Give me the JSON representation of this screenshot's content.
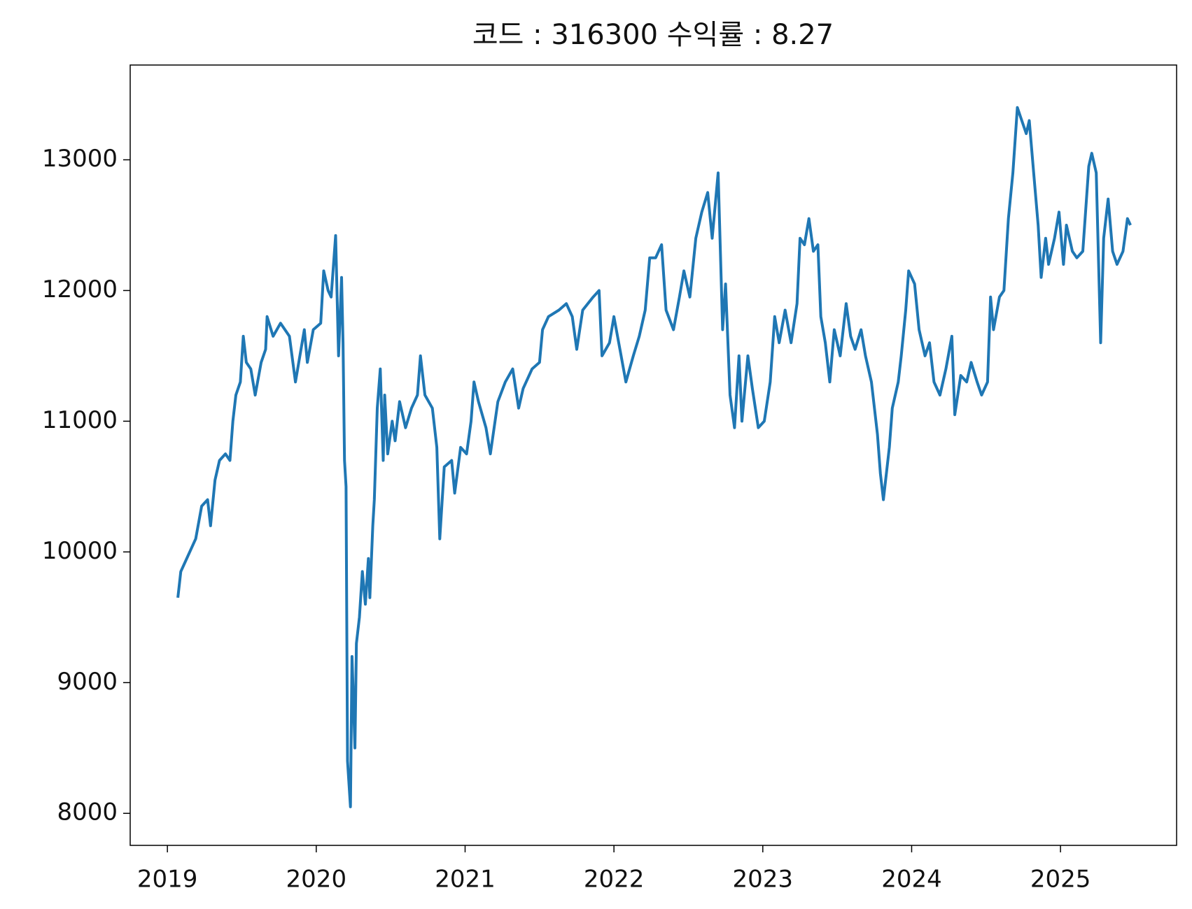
{
  "chart_data": {
    "type": "line",
    "title": "코드 : 316300 수익률 : 8.27",
    "x": [
      2019.07,
      2019.09,
      2019.11,
      2019.15,
      2019.19,
      2019.23,
      2019.27,
      2019.29,
      2019.32,
      2019.35,
      2019.39,
      2019.42,
      2019.44,
      2019.46,
      2019.49,
      2019.51,
      2019.53,
      2019.56,
      2019.59,
      2019.63,
      2019.66,
      2019.67,
      2019.71,
      2019.76,
      2019.82,
      2019.86,
      2019.92,
      2019.94,
      2019.98,
      2020.03,
      2020.05,
      2020.08,
      2020.1,
      2020.13,
      2020.15,
      2020.17,
      2020.18,
      2020.19,
      2020.2,
      2020.21,
      2020.23,
      2020.24,
      2020.26,
      2020.27,
      2020.29,
      2020.31,
      2020.33,
      2020.35,
      2020.36,
      2020.38,
      2020.39,
      2020.41,
      2020.43,
      2020.45,
      2020.46,
      2020.48,
      2020.51,
      2020.53,
      2020.56,
      2020.6,
      2020.64,
      2020.68,
      2020.7,
      2020.73,
      2020.78,
      2020.81,
      2020.83,
      2020.86,
      2020.91,
      2020.93,
      2020.97,
      2021.01,
      2021.04,
      2021.06,
      2021.09,
      2021.14,
      2021.17,
      2021.22,
      2021.27,
      2021.32,
      2021.36,
      2021.39,
      2021.45,
      2021.5,
      2021.52,
      2021.56,
      2021.63,
      2021.68,
      2021.72,
      2021.75,
      2021.79,
      2021.86,
      2021.9,
      2021.92,
      2021.97,
      2022.0,
      2022.04,
      2022.08,
      2022.13,
      2022.17,
      2022.21,
      2022.24,
      2022.28,
      2022.32,
      2022.35,
      2022.4,
      2022.44,
      2022.47,
      2022.51,
      2022.55,
      2022.59,
      2022.63,
      2022.66,
      2022.7,
      2022.73,
      2022.75,
      2022.78,
      2022.81,
      2022.84,
      2022.86,
      2022.9,
      2022.93,
      2022.97,
      2023.01,
      2023.05,
      2023.08,
      2023.11,
      2023.15,
      2023.19,
      2023.23,
      2023.25,
      2023.28,
      2023.31,
      2023.34,
      2023.37,
      2023.39,
      2023.42,
      2023.45,
      2023.48,
      2023.52,
      2023.56,
      2023.59,
      2023.62,
      2023.66,
      2023.69,
      2023.73,
      2023.77,
      2023.79,
      2023.81,
      2023.85,
      2023.87,
      2023.91,
      2023.93,
      2023.96,
      2023.98,
      2024.02,
      2024.05,
      2024.09,
      2024.12,
      2024.15,
      2024.19,
      2024.23,
      2024.27,
      2024.29,
      2024.33,
      2024.37,
      2024.4,
      2024.44,
      2024.47,
      2024.51,
      2024.53,
      2024.55,
      2024.59,
      2024.62,
      2024.65,
      2024.68,
      2024.71,
      2024.74,
      2024.77,
      2024.79,
      2024.82,
      2024.85,
      2024.87,
      2024.9,
      2024.92,
      2024.96,
      2024.99,
      2025.02,
      2025.04,
      2025.08,
      2025.11,
      2025.15,
      2025.19,
      2025.21,
      2025.24,
      2025.27,
      2025.29,
      2025.32,
      2025.35,
      2025.38,
      2025.42,
      2025.45,
      2025.47
    ],
    "series": [
      {
        "name": "316300",
        "color": "#1f77b4",
        "values": [
          9650,
          9850,
          9900,
          10000,
          10100,
          10350,
          10400,
          10200,
          10550,
          10700,
          10750,
          10700,
          11000,
          11200,
          11300,
          11650,
          11450,
          11400,
          11200,
          11450,
          11550,
          11800,
          11650,
          11750,
          11650,
          11300,
          11700,
          11450,
          11700,
          11750,
          12150,
          12000,
          11950,
          12420,
          11500,
          12100,
          11600,
          10700,
          10500,
          8400,
          8050,
          9200,
          8500,
          9300,
          9500,
          9850,
          9600,
          9950,
          9650,
          10200,
          10400,
          11100,
          11400,
          10700,
          11200,
          10750,
          11000,
          10850,
          11150,
          10950,
          11100,
          11200,
          11500,
          11200,
          11100,
          10800,
          10100,
          10650,
          10700,
          10450,
          10800,
          10750,
          11000,
          11300,
          11150,
          10950,
          10750,
          11150,
          11300,
          11400,
          11100,
          11250,
          11400,
          11450,
          11700,
          11800,
          11850,
          11900,
          11800,
          11550,
          11850,
          11950,
          12000,
          11500,
          11600,
          11800,
          11550,
          11300,
          11500,
          11650,
          11850,
          12250,
          12250,
          12350,
          11850,
          11700,
          11950,
          12150,
          11950,
          12400,
          12600,
          12750,
          12400,
          12900,
          11700,
          12050,
          11200,
          10950,
          11500,
          11000,
          11500,
          11250,
          10950,
          11000,
          11300,
          11800,
          11600,
          11850,
          11600,
          11900,
          12400,
          12350,
          12550,
          12300,
          12350,
          11800,
          11600,
          11300,
          11700,
          11500,
          11900,
          11650,
          11550,
          11700,
          11500,
          11300,
          10900,
          10600,
          10400,
          10800,
          11100,
          11300,
          11500,
          11850,
          12150,
          12050,
          11700,
          11500,
          11600,
          11300,
          11200,
          11400,
          11650,
          11050,
          11350,
          11300,
          11450,
          11300,
          11200,
          11300,
          11950,
          11700,
          11950,
          12000,
          12550,
          12900,
          13400,
          13300,
          13200,
          13300,
          12900,
          12500,
          12100,
          12400,
          12200,
          12400,
          12600,
          12200,
          12500,
          12300,
          12250,
          12300,
          12950,
          13050,
          12900,
          11600,
          12400,
          12700,
          12300,
          12200,
          12300,
          12550,
          12500
        ]
      }
    ],
    "xlim": [
      2018.75,
      2025.78
    ],
    "xticks": [
      2019,
      2020,
      2021,
      2022,
      2023,
      2024,
      2025
    ],
    "ylim": [
      7755,
      13725
    ],
    "yticks": [
      8000,
      9000,
      10000,
      11000,
      12000,
      13000
    ],
    "grid": false
  }
}
